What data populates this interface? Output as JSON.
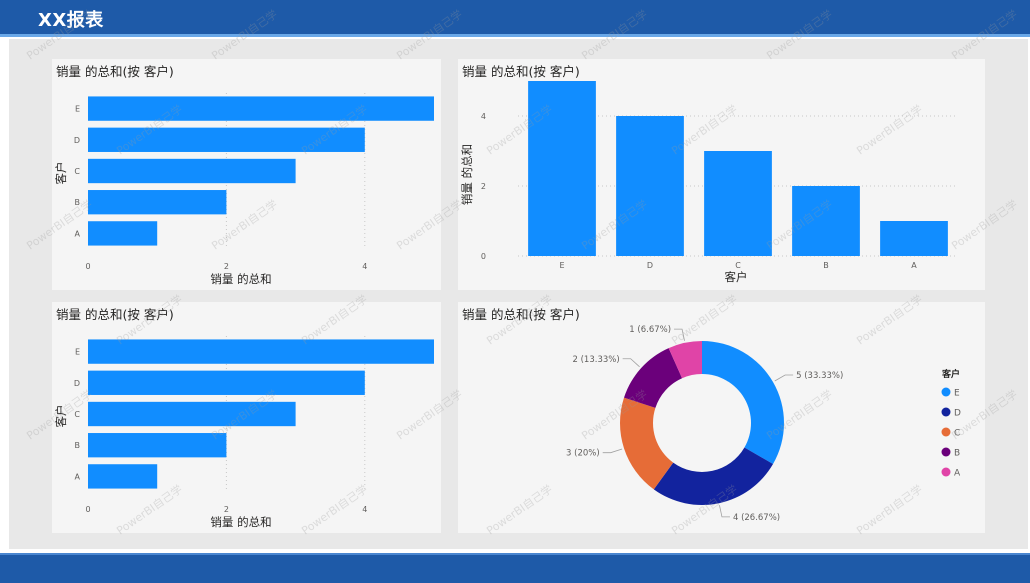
{
  "header": {
    "title": "XX报表"
  },
  "colors": {
    "header_bg": "#1e5aa8",
    "bar": "#118dff",
    "donut": [
      "#118dff",
      "#12239e",
      "#e66c37",
      "#6b007b",
      "#e044a7"
    ]
  },
  "panels": {
    "bar_top": {
      "title": "销量 的总和(按 客户)"
    },
    "column": {
      "title": "销量 的总和(按 客户)"
    },
    "bar_bottom": {
      "title": "销量 的总和(按 客户)"
    },
    "donut": {
      "title": "销量 的总和(按 客户)"
    }
  },
  "watermark_text": "PowerBI自己学",
  "chart_data": [
    {
      "type": "bar",
      "orientation": "horizontal",
      "title": "销量 的总和(按 客户)",
      "categories": [
        "E",
        "D",
        "C",
        "B",
        "A"
      ],
      "values": [
        5,
        4,
        3,
        2,
        1
      ],
      "xlabel": "销量 的总和",
      "ylabel": "客户",
      "xticks": [
        "0",
        "2",
        "4"
      ],
      "xlim": [
        0,
        5
      ]
    },
    {
      "type": "bar",
      "orientation": "vertical",
      "title": "销量 的总和(按 客户)",
      "categories": [
        "E",
        "D",
        "C",
        "B",
        "A"
      ],
      "values": [
        5,
        4,
        3,
        2,
        1
      ],
      "xlabel": "客户",
      "ylabel": "销量 的总和",
      "yticks": [
        "0",
        "2",
        "4"
      ],
      "ylim": [
        0,
        5
      ]
    },
    {
      "type": "bar",
      "orientation": "horizontal",
      "title": "销量 的总和(按 客户)",
      "categories": [
        "E",
        "D",
        "C",
        "B",
        "A"
      ],
      "values": [
        5,
        4,
        3,
        2,
        1
      ],
      "xlabel": "销量 的总和",
      "ylabel": "客户",
      "xticks": [
        "0",
        "2",
        "4"
      ],
      "xlim": [
        0,
        5
      ]
    },
    {
      "type": "pie",
      "variant": "donut",
      "title": "销量 的总和(按 客户)",
      "categories": [
        "E",
        "D",
        "C",
        "B",
        "A"
      ],
      "values": [
        5,
        4,
        3,
        2,
        1
      ],
      "labels": [
        "5 (33.33%)",
        "4 (26.67%)",
        "3 (20%)",
        "2 (13.33%)",
        "1 (6.67%)"
      ],
      "legend_title": "客户",
      "legend_position": "right"
    }
  ]
}
